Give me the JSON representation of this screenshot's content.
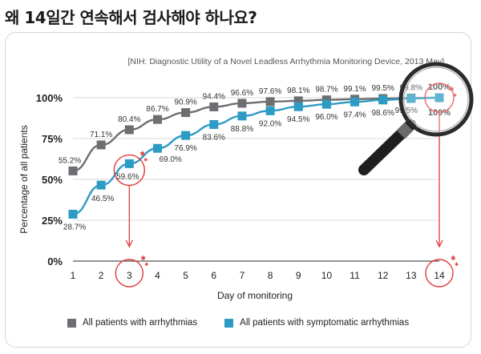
{
  "page": {
    "title": "왜 14일간 연속해서 검사해야 하나요?"
  },
  "chart_data": {
    "type": "line",
    "source_note": "[NIH: Diagnostic Utility of a Novel Leadless Arrhythmia Monitoring Device, 2013 May]",
    "xlabel": "Day of monitoring",
    "ylabel": "Percentage of all patients",
    "x": [
      1,
      2,
      3,
      4,
      5,
      6,
      7,
      8,
      9,
      10,
      11,
      12,
      13,
      14
    ],
    "x_tick_labels": [
      "1",
      "2",
      "3",
      "4",
      "5",
      "6",
      "7",
      "8",
      "9",
      "10",
      "11",
      "12",
      "13",
      "14"
    ],
    "ylim": [
      0,
      100
    ],
    "y_ticks": [
      0,
      25,
      50,
      75,
      100
    ],
    "y_tick_labels": [
      "0%",
      "25%",
      "50%",
      "75%",
      "100%"
    ],
    "legend_position": "bottom",
    "highlighted_days": [
      3,
      14
    ],
    "series": [
      {
        "name": "All patients with arrhythmias",
        "color": "#6d6e71",
        "values": [
          55.2,
          71.1,
          80.4,
          86.7,
          90.9,
          94.4,
          96.6,
          97.6,
          98.1,
          98.7,
          99.1,
          99.5,
          99.8,
          100
        ],
        "labels": [
          "55.2%",
          "71.1%",
          "80.4%",
          "86.7%",
          "90.9%",
          "94.4%",
          "96.6%",
          "97.6%",
          "98.1%",
          "98.7%",
          "99.1%",
          "99.5%",
          "99.8%",
          "100%"
        ]
      },
      {
        "name": "All patients with symptomatic arrhythmias",
        "color": "#2d9bc4",
        "values": [
          28.7,
          46.5,
          59.6,
          69.0,
          76.9,
          83.6,
          88.8,
          92.0,
          94.5,
          96.0,
          97.4,
          98.6,
          99.5,
          100
        ],
        "labels": [
          "28.7%",
          "46.5%",
          "59.6%",
          "69.0%",
          "76.9%",
          "83.6%",
          "88.8%",
          "92.0%",
          "94.5%",
          "96.0%",
          "97.4%",
          "98.6%",
          "99.5%",
          "100%"
        ]
      }
    ]
  },
  "colors": {
    "annotation_red": "#e03a3a",
    "axis_grey": "#9a9a9a"
  }
}
